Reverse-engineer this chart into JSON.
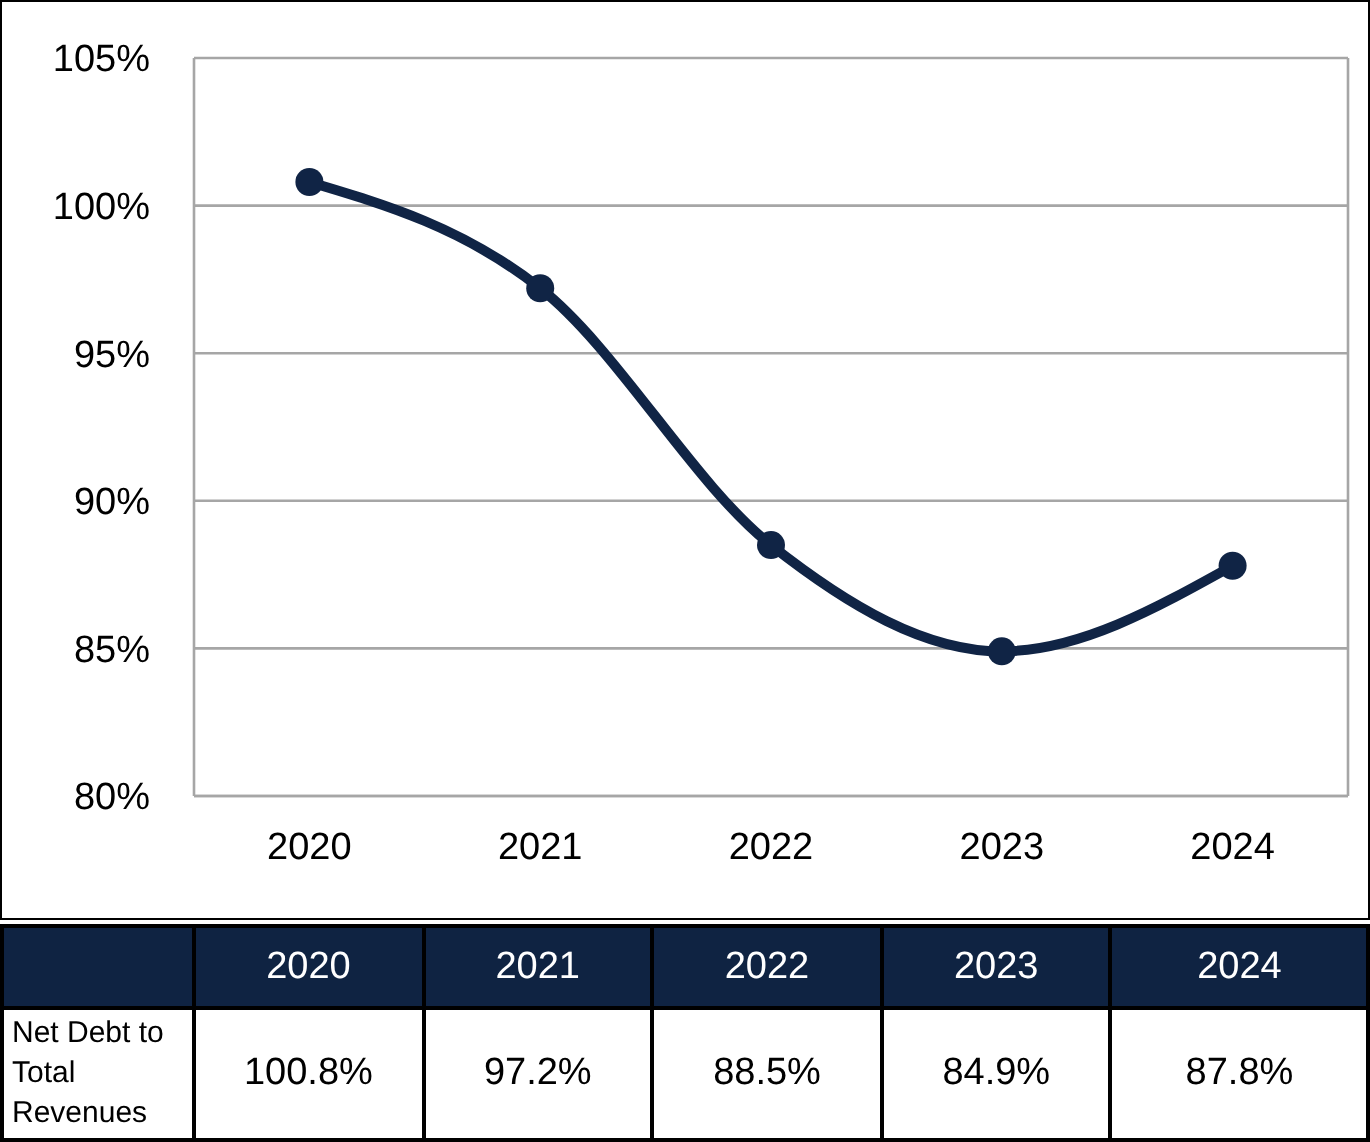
{
  "chart_data": {
    "type": "line",
    "categories": [
      "2020",
      "2021",
      "2022",
      "2023",
      "2024"
    ],
    "series": [
      {
        "name": "Net Debt to Total Revenues",
        "color": "#102445",
        "values": [
          100.8,
          97.2,
          88.5,
          84.9,
          87.8
        ],
        "value_labels": [
          "100.8%",
          "97.2%",
          "88.5%",
          "84.9%",
          "87.8%"
        ]
      }
    ],
    "ylim": [
      80,
      105
    ],
    "yticks": [
      {
        "value": 80,
        "label": "80%"
      },
      {
        "value": 85,
        "label": "85%"
      },
      {
        "value": 90,
        "label": "90%"
      },
      {
        "value": 95,
        "label": "95%"
      },
      {
        "value": 100,
        "label": "100%"
      },
      {
        "value": 105,
        "label": "105%"
      }
    ],
    "grid": "y",
    "marker": "circle",
    "line_style": "solid",
    "legend": false
  }
}
